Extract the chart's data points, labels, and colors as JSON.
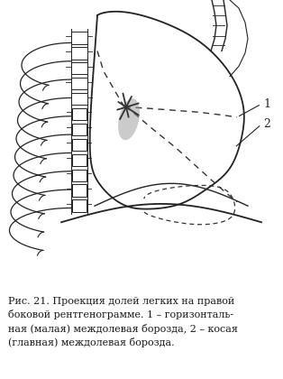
{
  "bg_color": "#ffffff",
  "line_color": "#222222",
  "dashed_color": "#333333",
  "caption": "Рис. 21. Проекция долей легких на правой\nбоковой рентгенограмме. 1 – горизонталь-\nная (малая) междолевая борозда, 2 – косая\n(главная) междолевая борозда.",
  "caption_fontsize": 8.0,
  "label1": "1",
  "label2": "2",
  "fig_width": 3.14,
  "fig_height": 4.2,
  "dpi": 100
}
